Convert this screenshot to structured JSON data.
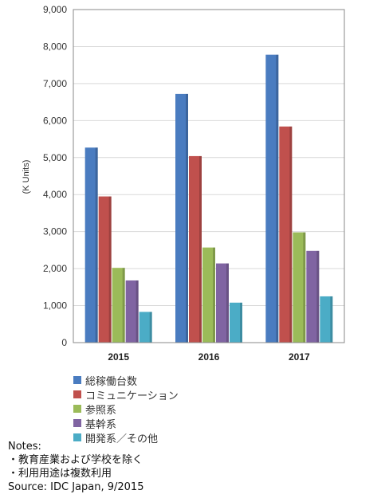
{
  "chart_data": {
    "type": "bar",
    "ylabel": "(K Units)",
    "ylim": [
      0,
      9000
    ],
    "yticks": [
      "0",
      "1,000",
      "2,000",
      "3,000",
      "4,000",
      "5,000",
      "6,000",
      "7,000",
      "8,000",
      "9,000"
    ],
    "categories": [
      "2015",
      "2016",
      "2017"
    ],
    "grid": true,
    "legend_position": "bottom-left",
    "series": [
      {
        "name": "総稼働台数",
        "color": "#4a7cc0",
        "values": [
          5270,
          6720,
          7780
        ]
      },
      {
        "name": "コミュニケーション",
        "color": "#c0504d",
        "values": [
          3950,
          5040,
          5840
        ]
      },
      {
        "name": "参照系",
        "color": "#9bbb59",
        "values": [
          2020,
          2570,
          2980
        ]
      },
      {
        "name": "基幹系",
        "color": "#8064a2",
        "values": [
          1680,
          2140,
          2480
        ]
      },
      {
        "name": "開発系／その他",
        "color": "#4bacc6",
        "values": [
          830,
          1080,
          1250
        ]
      }
    ]
  },
  "notes": {
    "heading": "Notes:",
    "lines": [
      "・教育産業および学校を除く",
      "・利用用途は複数利用"
    ],
    "source": "Source: IDC Japan, 9/2015"
  }
}
